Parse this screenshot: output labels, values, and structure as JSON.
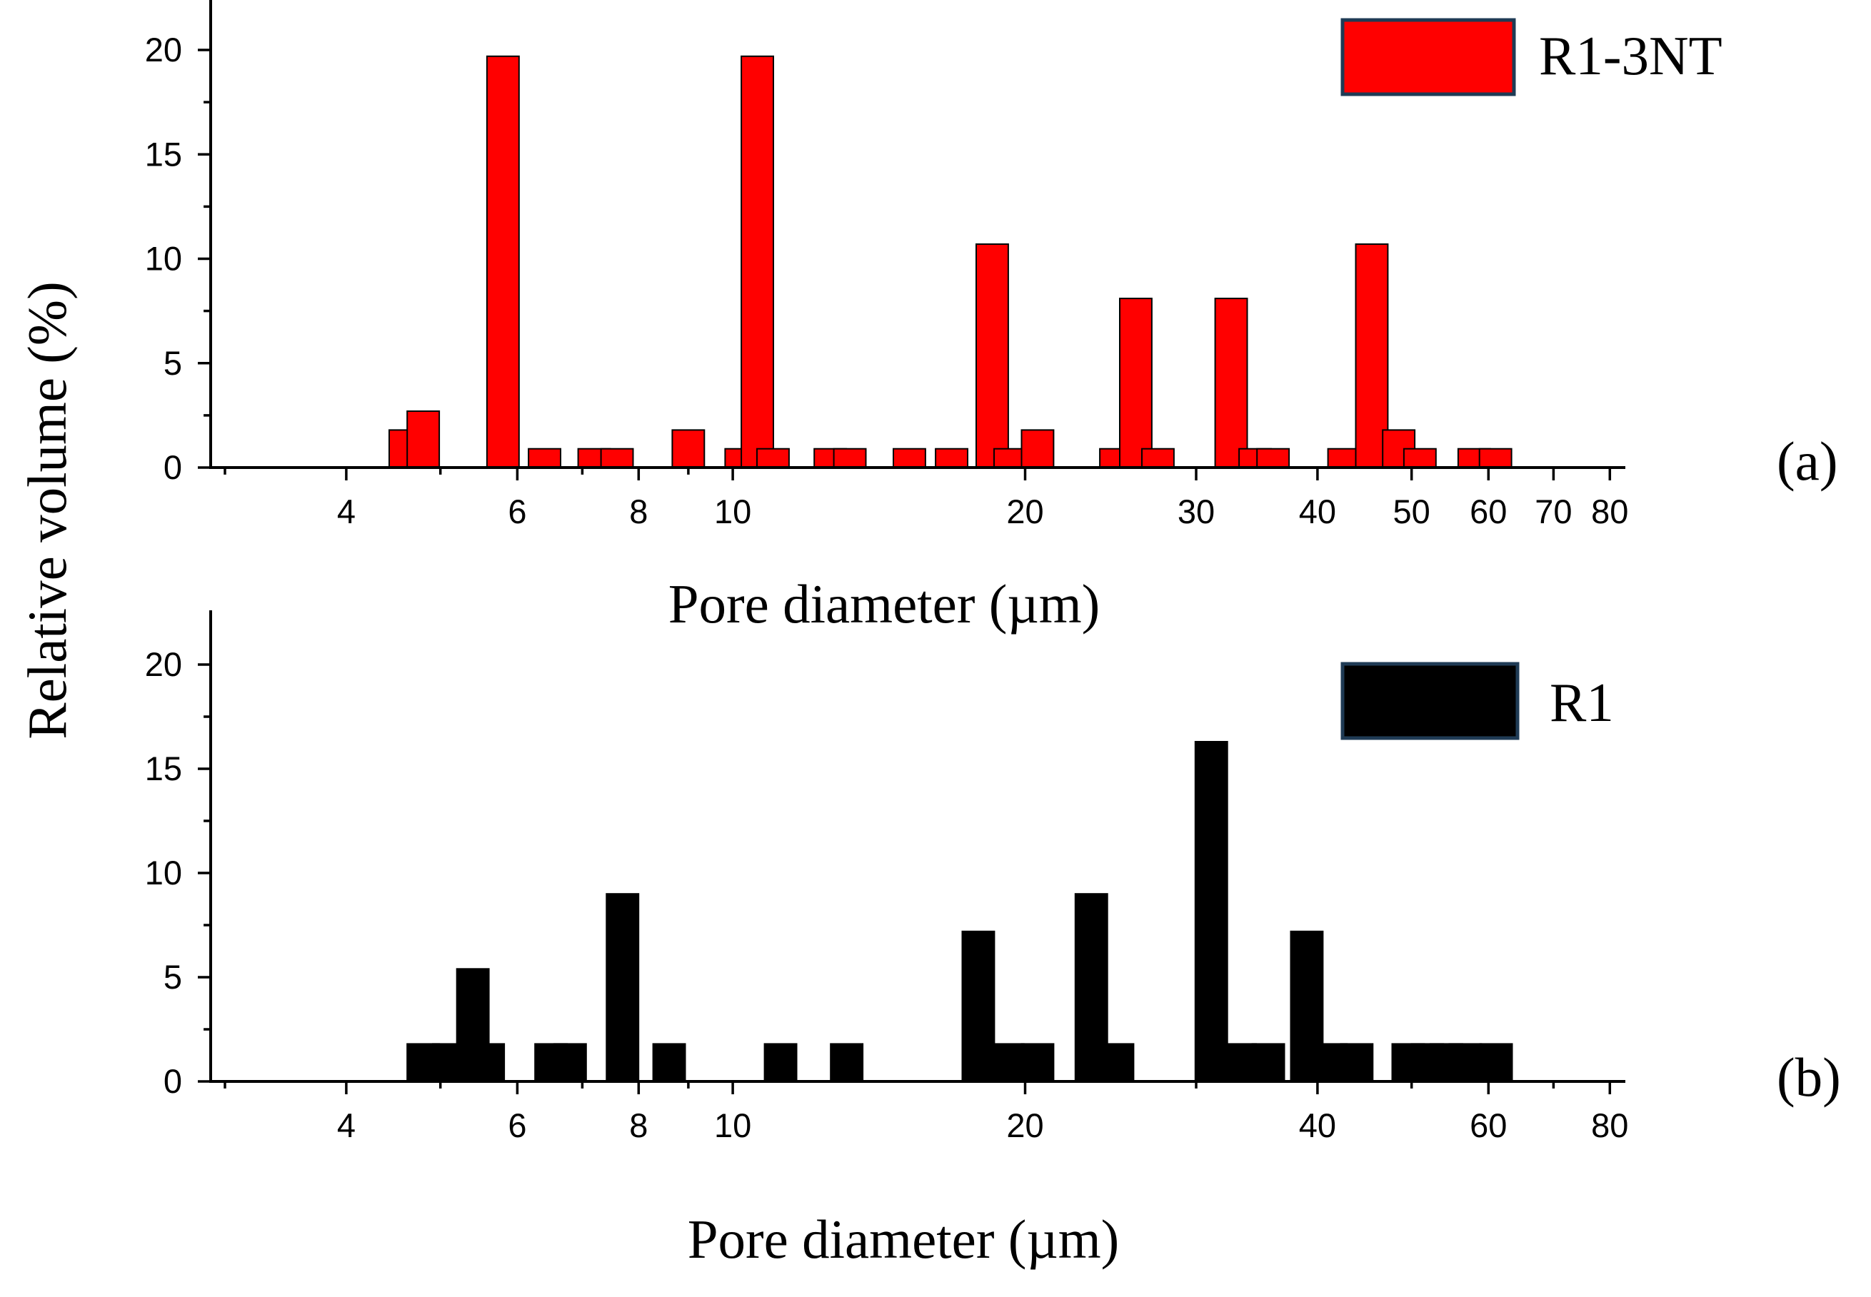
{
  "y_axis_title": "Relative volume (%)",
  "chart_data": [
    {
      "type": "bar",
      "panel": "(a)",
      "xscale": "log",
      "xlabel": "Pore diameter (µm)",
      "ylabel": "Relative volume (%)",
      "xlim": [
        2.9,
        83
      ],
      "ylim": [
        0,
        22
      ],
      "xticks": [
        4,
        6,
        8,
        10,
        20,
        30,
        40,
        50,
        60,
        70,
        80
      ],
      "yticks": [
        0,
        5,
        10,
        15,
        20
      ],
      "series": [
        {
          "name": "R1-3NT",
          "color": "#ff0000",
          "x": [
            4.6,
            4.8,
            5.8,
            6.4,
            7.2,
            7.6,
            9.0,
            10.2,
            10.6,
            11.0,
            12.6,
            13.2,
            15.2,
            16.8,
            18.5,
            19.3,
            20.6,
            24.8,
            26.0,
            27.4,
            32.6,
            34.5,
            36.0,
            42.6,
            45.5,
            48.5,
            51.0,
            58.0,
            61.0
          ],
          "values": [
            1.8,
            2.7,
            19.7,
            0.9,
            0.9,
            0.9,
            1.8,
            0.9,
            19.7,
            0.9,
            0.9,
            0.9,
            0.9,
            0.9,
            10.7,
            0.9,
            1.8,
            0.9,
            8.1,
            0.9,
            8.1,
            0.9,
            0.9,
            0.9,
            10.7,
            1.8,
            0.9,
            0.9,
            0.9
          ]
        }
      ]
    },
    {
      "type": "bar",
      "panel": "(b)",
      "xscale": "log",
      "xlabel": "Pore diameter (µm)",
      "ylabel": "Relative volume (%)",
      "xlim": [
        2.9,
        83
      ],
      "ylim": [
        0,
        22
      ],
      "xticks": [
        4,
        6,
        8,
        10,
        20,
        40,
        60,
        80
      ],
      "yticks": [
        0,
        5,
        10,
        15,
        20
      ],
      "series": [
        {
          "name": "R1",
          "color": "#000000",
          "x": [
            4.8,
            5.1,
            5.4,
            5.6,
            6.5,
            6.8,
            7.7,
            8.6,
            11.2,
            13.1,
            17.9,
            19.2,
            20.6,
            23.4,
            24.9,
            31.1,
            33.3,
            35.6,
            39.0,
            41.3,
            43.9,
            49.6,
            51.9,
            54.3,
            56.8,
            61.1
          ],
          "values": [
            1.8,
            1.8,
            5.4,
            1.8,
            1.8,
            1.8,
            9.0,
            1.8,
            1.8,
            1.8,
            7.2,
            1.8,
            1.8,
            9.0,
            1.8,
            16.3,
            1.8,
            1.8,
            7.2,
            1.8,
            1.8,
            1.8,
            1.8,
            1.8,
            1.8,
            1.8
          ]
        }
      ]
    }
  ]
}
